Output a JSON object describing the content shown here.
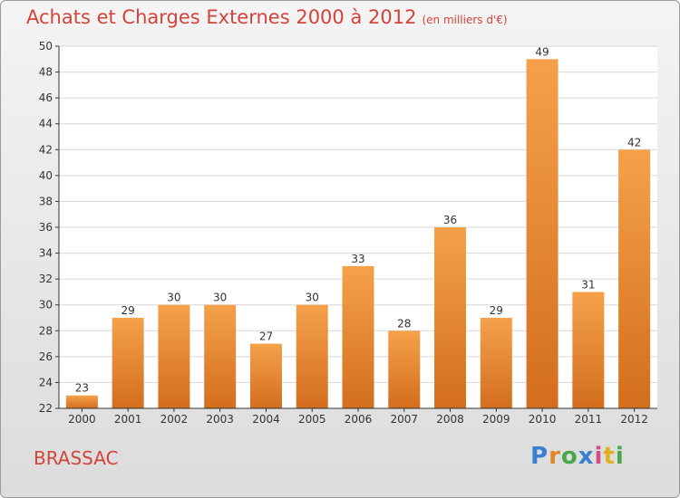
{
  "header": {
    "title": "Achats et Charges Externes 2000 à 2012",
    "subtitle": "(en milliers d'€)"
  },
  "footer": {
    "commune": "BRASSAC",
    "logo": "Proxiti",
    "logo_colors": [
      "#3a7fd0",
      "#e0882a",
      "#4aa84a",
      "#3a7fd0",
      "#d44a8a",
      "#e0b020",
      "#4aa84a"
    ]
  },
  "colors": {
    "bar_light": "#f5a14a",
    "bar_dark": "#d36e1c",
    "text_accent": "#d2443a",
    "axis": "#333333",
    "grid": "#d7d7d7"
  },
  "chart_data": {
    "type": "bar",
    "title": "Achats et Charges Externes 2000 à 2012",
    "subtitle": "(en milliers d'€)",
    "categories": [
      "2000",
      "2001",
      "2002",
      "2003",
      "2004",
      "2005",
      "2006",
      "2007",
      "2008",
      "2009",
      "2010",
      "2011",
      "2012"
    ],
    "values": [
      23,
      29,
      30,
      30,
      27,
      30,
      33,
      28,
      36,
      29,
      49,
      31,
      42
    ],
    "ylim": [
      22,
      50
    ],
    "yticks": [
      22,
      24,
      26,
      28,
      30,
      32,
      34,
      36,
      38,
      40,
      42,
      44,
      46,
      48,
      50
    ],
    "grid": true,
    "data_labels": true
  }
}
